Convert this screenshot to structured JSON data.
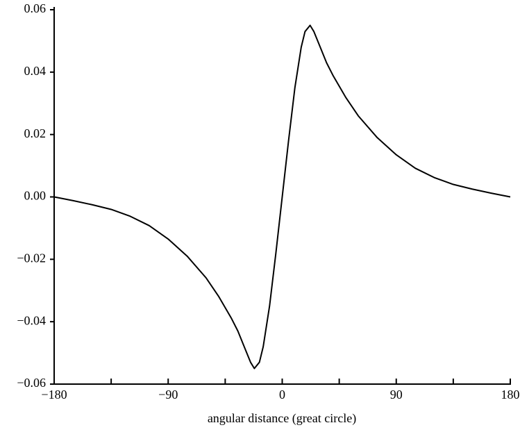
{
  "chart_data": {
    "type": "line",
    "x_label": "angular distance (great circle)",
    "x": [
      -180,
      -165,
      -150,
      -135,
      -120,
      -105,
      -90,
      -75,
      -60,
      -50,
      -40,
      -35,
      -30,
      -25,
      -22,
      -18,
      -15,
      -10,
      -5,
      0,
      5,
      10,
      15,
      18,
      22,
      25,
      30,
      35,
      40,
      50,
      60,
      75,
      90,
      105,
      120,
      135,
      150,
      165,
      180
    ],
    "series": [
      {
        "color": "#000000",
        "values": [
          0,
          -0.0012,
          -0.0025,
          -0.004,
          -0.0062,
          -0.0092,
          -0.0135,
          -0.019,
          -0.026,
          -0.032,
          -0.039,
          -0.043,
          -0.048,
          -0.053,
          -0.055,
          -0.053,
          -0.048,
          -0.035,
          -0.018,
          0,
          0.018,
          0.035,
          0.048,
          0.053,
          0.055,
          0.053,
          0.048,
          0.043,
          0.039,
          0.032,
          0.026,
          0.019,
          0.0135,
          0.0092,
          0.0062,
          0.004,
          0.0025,
          0.0012,
          0
        ]
      }
    ],
    "xlim": [
      -180,
      180
    ],
    "xticks": [
      {
        "value": -180,
        "label": "−180"
      },
      {
        "value": -90,
        "label": "−90"
      },
      0,
      90,
      180
    ],
    "xminorticks": [
      -135,
      -45,
      45,
      135
    ],
    "ylim": [
      -0.06,
      0.06
    ],
    "yticks": [
      {
        "value": -0.06,
        "label": "−0.06"
      },
      {
        "value": -0.04,
        "label": "−0.04"
      },
      {
        "value": -0.02,
        "label": "−0.02"
      },
      {
        "value": 0,
        "label": "0.00"
      },
      0.02,
      0.04,
      0.06
    ]
  }
}
